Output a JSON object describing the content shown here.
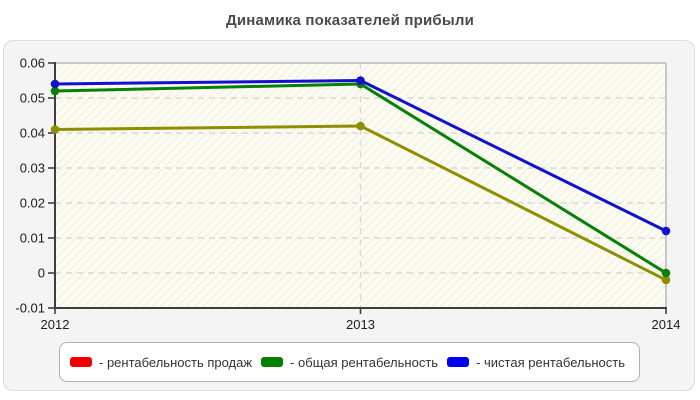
{
  "title": "Динамика показателей прибыли",
  "colors": {
    "panel_bg": "#f4f4f4",
    "panel_border": "#dcdcdc",
    "plot_bg": "#fbfbf0",
    "hatch": "#e7e7e2",
    "grid": "#d8d8d8",
    "axis_dark": "#3f3f3f",
    "axis_light": "#c8c8c8",
    "tick_text": "#1c1c1c"
  },
  "chart_data": {
    "type": "line",
    "categories": [
      "2012",
      "2013",
      "2014"
    ],
    "series": [
      {
        "name": "- рентабельность продаж",
        "legend_color": "#ee0000",
        "line_color": "#8e8e00",
        "values": [
          0.041,
          0.042,
          -0.002
        ]
      },
      {
        "name": "- общая рентабельность",
        "legend_color": "#008000",
        "line_color": "#068006",
        "values": [
          0.052,
          0.054,
          0.0
        ]
      },
      {
        "name": "- чистая рентабельность",
        "legend_color": "#0000ee",
        "line_color": "#1111cf",
        "values": [
          0.054,
          0.055,
          0.012
        ]
      }
    ],
    "title": "Динамика показателей прибыли",
    "xlabel": "",
    "ylabel": "",
    "ylim": [
      -0.01,
      0.06
    ],
    "ytick_step": 0.01,
    "ytick_labels": [
      "0.06",
      "0.05",
      "0.04",
      "0.03",
      "0.02",
      "0.01",
      "0",
      "-0.01"
    ],
    "grid": "dashed",
    "legend_position": "bottom"
  }
}
